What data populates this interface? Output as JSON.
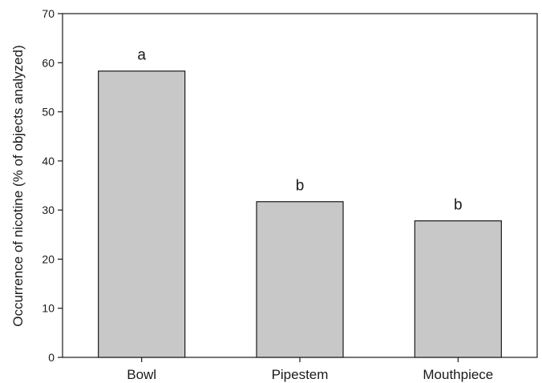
{
  "chart_data": {
    "type": "bar",
    "title": "",
    "xlabel": "",
    "ylabel": "Occurrence of nicotine (% of objects analyzed)",
    "categories": [
      "Bowl",
      "Pipestem",
      "Mouthpiece"
    ],
    "values": [
      58.3,
      31.7,
      27.8
    ],
    "annotations": [
      "a",
      "b",
      "b"
    ],
    "ylim": [
      0,
      70
    ],
    "yticks": [
      0,
      10,
      20,
      30,
      40,
      50,
      60,
      70
    ],
    "grid": false,
    "legend": "none",
    "colors": {
      "bar_fill": "#c8c8c8",
      "bar_stroke": "#1a1a1a",
      "axis": "#1a1a1a"
    }
  }
}
